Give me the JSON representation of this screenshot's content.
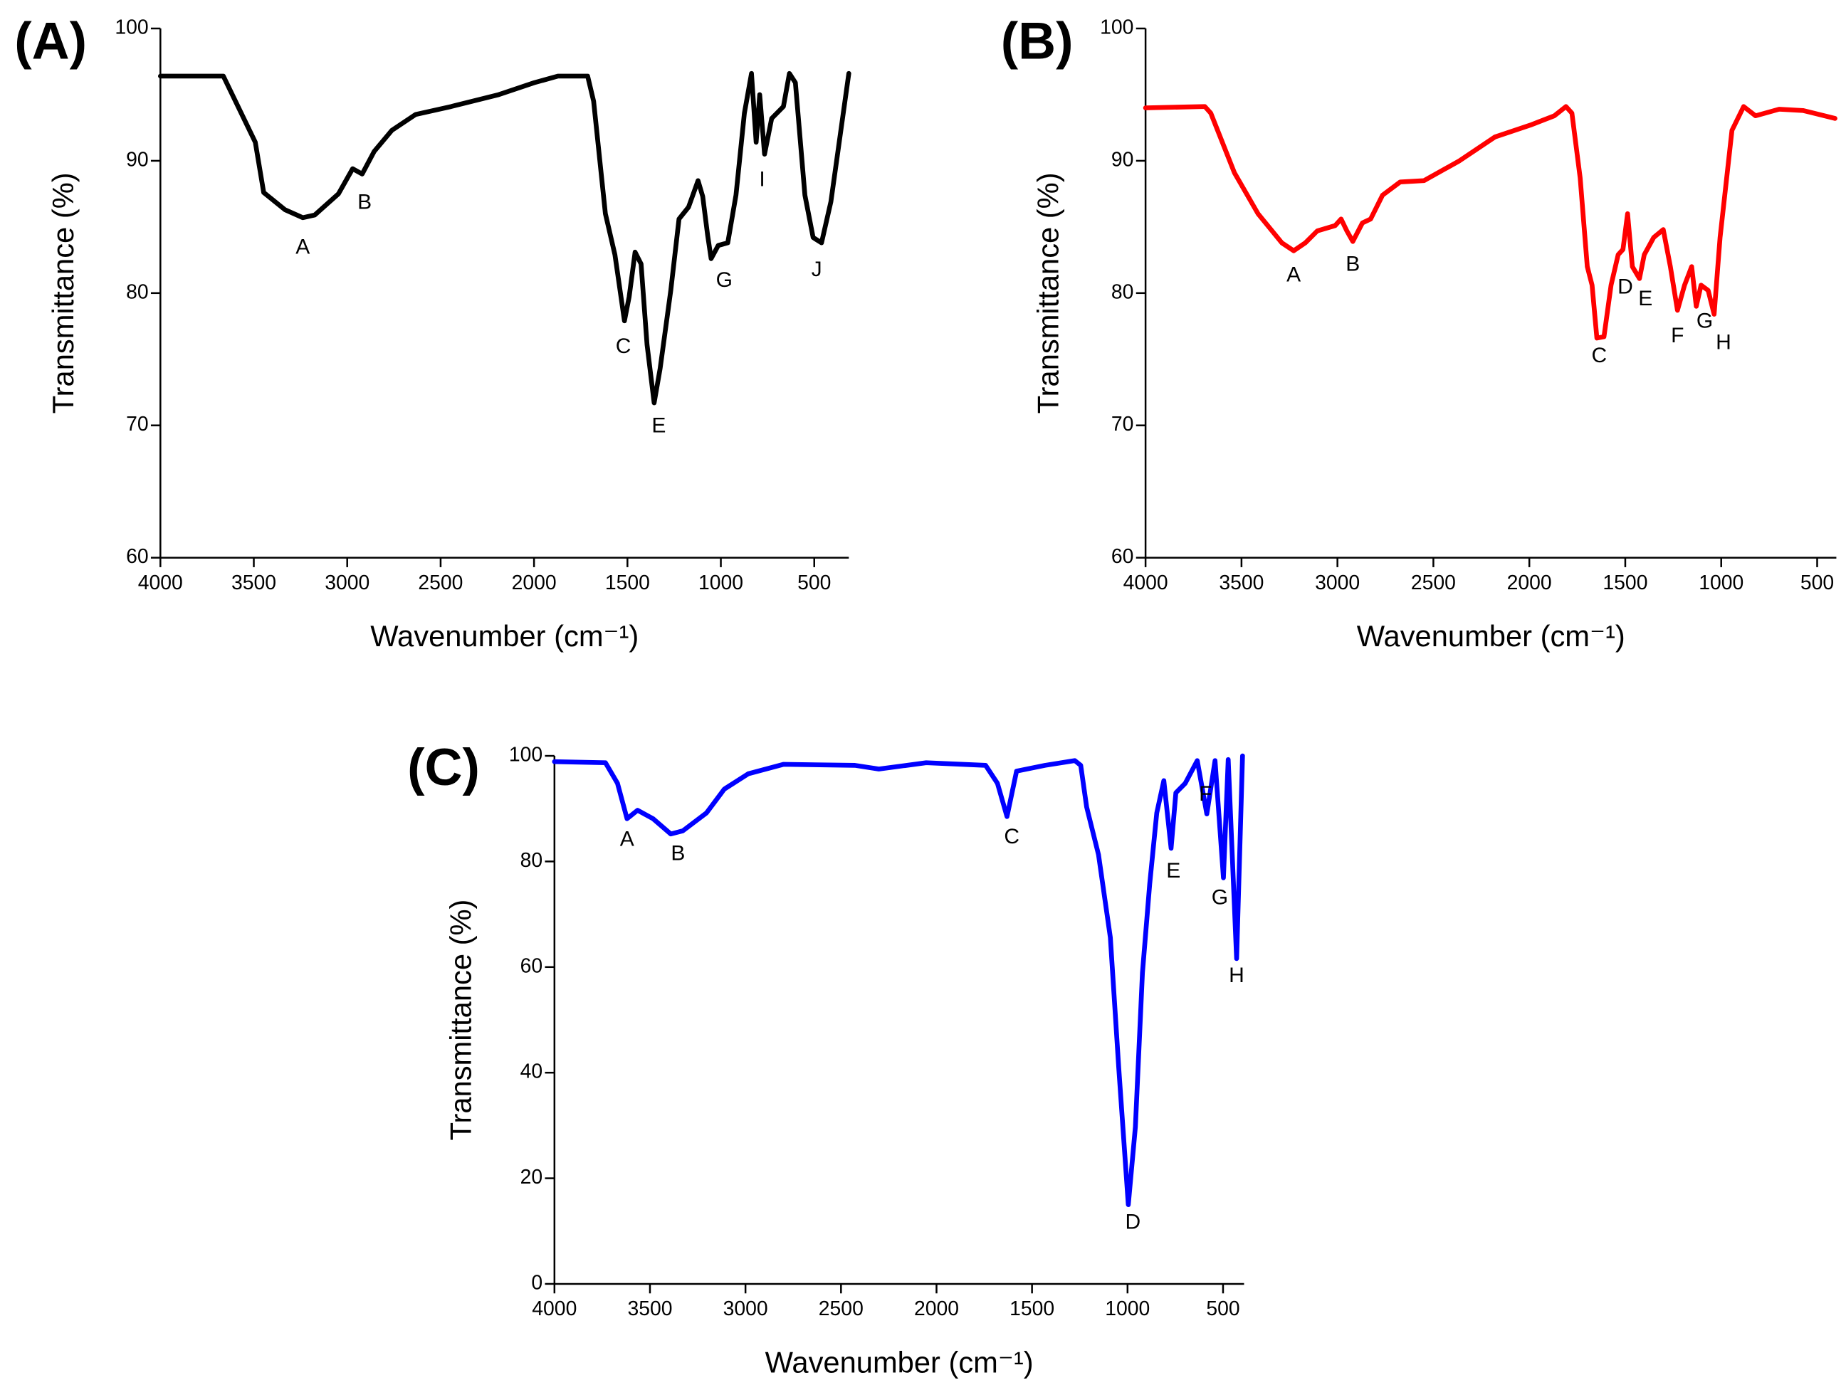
{
  "chart_data": [
    {
      "type": "line",
      "panel": "(A)",
      "xlabel": "Wavenumber (cm⁻¹)",
      "ylabel": "Transmittance (%)",
      "color": "#000000",
      "x": [
        4000,
        3663,
        3492,
        3447,
        3333,
        3238,
        3174,
        3047,
        2971,
        2920,
        2856,
        2761,
        2634,
        2444,
        2189,
        1999,
        1872,
        1713,
        1681,
        1618,
        1567,
        1516,
        1491,
        1459,
        1427,
        1395,
        1357,
        1325,
        1268,
        1224,
        1173,
        1122,
        1097,
        1071,
        1052,
        1014,
        963,
        919,
        874,
        836,
        811,
        792,
        766,
        728,
        665,
        633,
        601,
        550,
        506,
        461,
        411,
        315
      ],
      "values": [
        96.4,
        96.4,
        91.4,
        87.6,
        86.3,
        85.7,
        85.9,
        87.5,
        89.4,
        89.0,
        90.7,
        92.3,
        93.5,
        94.1,
        95.0,
        95.9,
        96.4,
        96.4,
        94.5,
        86.0,
        82.9,
        77.9,
        79.7,
        83.1,
        82.2,
        76.1,
        71.7,
        74.3,
        80.2,
        85.6,
        86.5,
        88.5,
        87.3,
        84.4,
        82.6,
        83.6,
        83.8,
        87.4,
        93.6,
        96.6,
        91.4,
        95.0,
        90.5,
        93.2,
        94.1,
        96.6,
        95.9,
        87.4,
        84.2,
        83.8,
        86.9,
        96.6
      ],
      "xlim": [
        4000,
        315
      ],
      "ylim": [
        60,
        100
      ],
      "xticks": [
        4000,
        3500,
        3000,
        2500,
        2000,
        1500,
        1000,
        500
      ],
      "yticks": [
        60,
        70,
        80,
        90,
        100
      ],
      "annotations": [
        {
          "text": "A",
          "x": 3238,
          "y": 83.4
        },
        {
          "text": "B",
          "x": 2907,
          "y": 86.8
        },
        {
          "text": "C",
          "x": 1522,
          "y": 75.9
        },
        {
          "text": "E",
          "x": 1332,
          "y": 69.9
        },
        {
          "text": "G",
          "x": 982,
          "y": 80.9
        },
        {
          "text": "I",
          "x": 779,
          "y": 88.5
        },
        {
          "text": "J",
          "x": 487,
          "y": 81.7
        }
      ]
    },
    {
      "type": "line",
      "panel": "(B)",
      "xlabel": "Wavenumber (cm⁻¹)",
      "ylabel": "Transmittance (%)",
      "color": "#ff0000",
      "x": [
        4000,
        3691,
        3660,
        3537,
        3414,
        3290,
        3228,
        3167,
        3105,
        3012,
        2981,
        2951,
        2920,
        2870,
        2827,
        2765,
        2673,
        2549,
        2364,
        2179,
        1994,
        1870,
        1809,
        1778,
        1735,
        1698,
        1673,
        1648,
        1611,
        1574,
        1537,
        1512,
        1488,
        1463,
        1426,
        1401,
        1352,
        1302,
        1265,
        1228,
        1191,
        1154,
        1130,
        1105,
        1068,
        1037,
        1006,
        944,
        883,
        821,
        698,
        574,
        407
      ],
      "values": [
        94.0,
        94.1,
        93.6,
        89.1,
        86.0,
        83.8,
        83.2,
        83.8,
        84.7,
        85.1,
        85.6,
        84.7,
        83.9,
        85.3,
        85.6,
        87.4,
        88.4,
        88.5,
        90.0,
        91.8,
        92.7,
        93.4,
        94.1,
        93.6,
        88.7,
        82.0,
        80.6,
        76.6,
        76.7,
        80.6,
        82.9,
        83.3,
        86.0,
        82.0,
        81.1,
        82.9,
        84.2,
        84.8,
        82.0,
        78.7,
        80.6,
        82.0,
        79.0,
        80.6,
        80.2,
        78.4,
        84.2,
        92.3,
        94.1,
        93.4,
        93.9,
        93.8,
        93.2
      ],
      "xlim": [
        4000,
        400
      ],
      "ylim": [
        60,
        100
      ],
      "xticks": [
        4000,
        3500,
        3000,
        2500,
        2000,
        1500,
        1000,
        500
      ],
      "yticks": [
        60,
        70,
        80,
        90,
        100
      ],
      "annotations": [
        {
          "text": "A",
          "x": 3228,
          "y": 81.3
        },
        {
          "text": "B",
          "x": 2920,
          "y": 82.1
        },
        {
          "text": "C",
          "x": 1636,
          "y": 75.2
        },
        {
          "text": "D",
          "x": 1500,
          "y": 80.4
        },
        {
          "text": "E",
          "x": 1395,
          "y": 79.5
        },
        {
          "text": "F",
          "x": 1228,
          "y": 76.7
        },
        {
          "text": "G",
          "x": 1086,
          "y": 77.8
        },
        {
          "text": "H",
          "x": 988,
          "y": 76.2
        }
      ]
    },
    {
      "type": "line",
      "panel": "(C)",
      "xlabel": "Wavenumber (cm⁻¹)",
      "ylabel": "Transmittance (%)",
      "color": "#0000ff",
      "x": [
        4000,
        3733,
        3670,
        3620,
        3565,
        3484,
        3391,
        3328,
        3204,
        3111,
        2986,
        2800,
        2427,
        2302,
        2054,
        1743,
        1681,
        1631,
        1581,
        1432,
        1276,
        1245,
        1214,
        1152,
        1090,
        1046,
        996,
        959,
        922,
        884,
        847,
        810,
        772,
        747,
        698,
        635,
        585,
        542,
        498,
        473,
        429,
        398
      ],
      "values": [
        98.9,
        98.7,
        94.8,
        88.1,
        89.7,
        88.1,
        85.2,
        85.8,
        89.2,
        93.7,
        96.6,
        98.4,
        98.2,
        97.5,
        98.7,
        98.2,
        94.8,
        88.5,
        97.1,
        98.2,
        99.1,
        98.2,
        90.3,
        81.3,
        65.6,
        40.9,
        15.0,
        29.7,
        58.9,
        75.7,
        89.2,
        95.3,
        82.5,
        93.0,
        94.8,
        99.1,
        89.0,
        99.1,
        76.9,
        99.3,
        61.6,
        100
      ],
      "xlim": [
        4000,
        390
      ],
      "ylim": [
        0,
        100
      ],
      "xticks": [
        4000,
        3500,
        3000,
        2500,
        2000,
        1500,
        1000,
        500
      ],
      "yticks": [
        0,
        20,
        40,
        60,
        80,
        100
      ],
      "annotations": [
        {
          "text": "A",
          "x": 3620,
          "y": 84
        },
        {
          "text": "B",
          "x": 3353,
          "y": 81.3
        },
        {
          "text": "C",
          "x": 1606,
          "y": 84.5
        },
        {
          "text": "D",
          "x": 972,
          "y": 11.5
        },
        {
          "text": "E",
          "x": 760,
          "y": 78
        },
        {
          "text": "F",
          "x": 592,
          "y": 92.6
        },
        {
          "text": "G",
          "x": 517,
          "y": 73
        },
        {
          "text": "H",
          "x": 429,
          "y": 58.2
        }
      ]
    }
  ]
}
